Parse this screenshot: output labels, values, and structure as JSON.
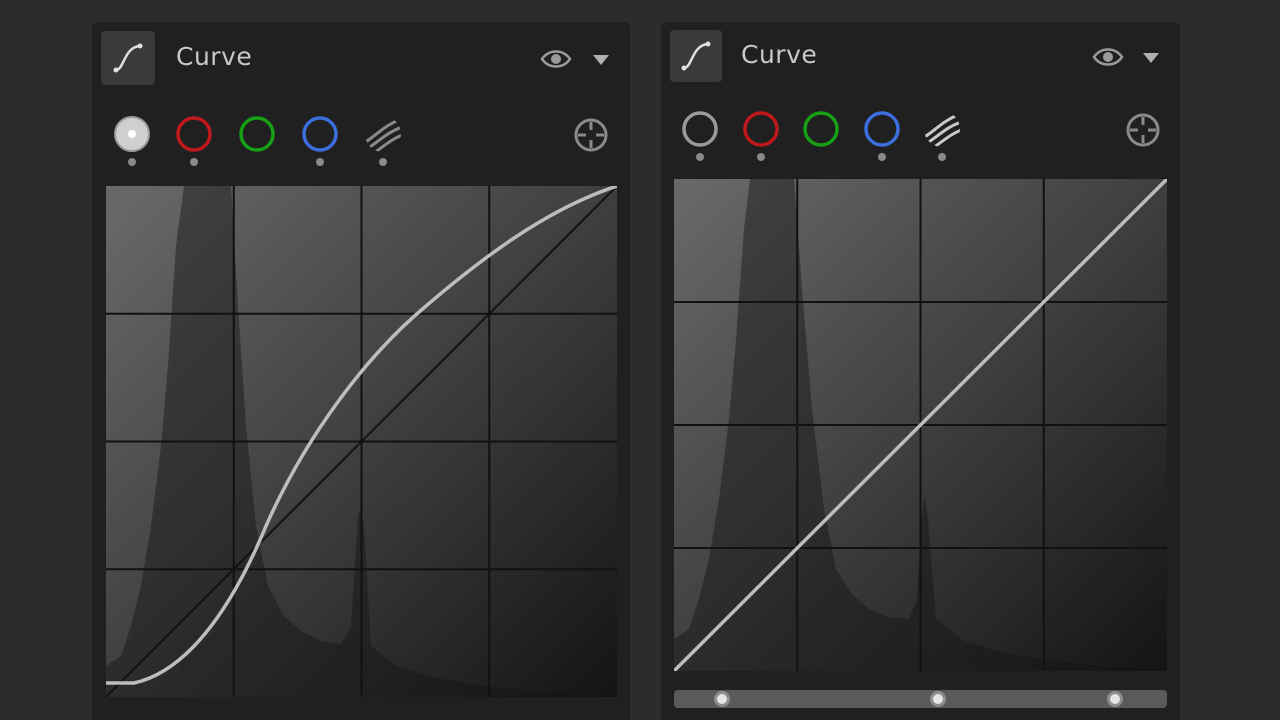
{
  "panels": [
    {
      "title": "Curve",
      "selected_channel": "luminance",
      "channels": [
        "luminance-icon",
        "red-channel-icon",
        "green-channel-icon",
        "blue-channel-icon",
        "alpha-stripes-icon"
      ],
      "curve": "s-curve"
    },
    {
      "title": "Curve",
      "selected_channel": "none",
      "channels": [
        "luminance-icon",
        "red-channel-icon",
        "green-channel-icon",
        "blue-channel-icon",
        "alpha-stripes-icon"
      ],
      "curve": "linear",
      "levels_slider": {
        "handles": 3
      }
    }
  ],
  "colors": {
    "panel_bg": "#202020",
    "page_bg": "#2c2c2c",
    "red": "#c0181b",
    "green": "#16a016",
    "blue": "#3b6fe0",
    "curve": "#bdbdbd"
  }
}
